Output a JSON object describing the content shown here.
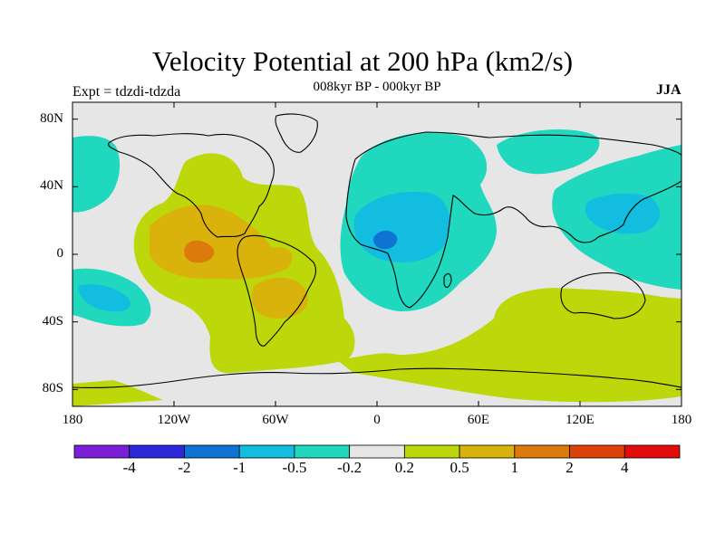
{
  "header": {
    "title": "Velocity Potential at 200 hPa (km2/s)",
    "subtitle": "008kyr BP - 000kyr BP",
    "left_label": "Expt = tdzdi-tdzda",
    "right_label": "JJA"
  },
  "map": {
    "projection": "cylindrical equidistant",
    "lon_range": [
      -180,
      180
    ],
    "lat_range": [
      -90,
      90
    ],
    "lat_ticks": [
      {
        "value": 80,
        "label": "80N"
      },
      {
        "value": 40,
        "label": "40N"
      },
      {
        "value": 0,
        "label": "0"
      },
      {
        "value": -40,
        "label": "40S"
      },
      {
        "value": -80,
        "label": "80S"
      }
    ],
    "lon_ticks": [
      {
        "value": -180,
        "label": "180"
      },
      {
        "value": -120,
        "label": "120W"
      },
      {
        "value": -60,
        "label": "60W"
      },
      {
        "value": 0,
        "label": "0"
      },
      {
        "value": 60,
        "label": "60E"
      },
      {
        "value": 120,
        "label": "120E"
      },
      {
        "value": 180,
        "label": "180"
      }
    ]
  },
  "colorbar": {
    "colors": [
      "#7a1ed8",
      "#2a28d8",
      "#0f73d4",
      "#12bde0",
      "#1fd8bd",
      "#e6e6e6",
      "#bcd80b",
      "#d9b20c",
      "#dc7a0b",
      "#dd420a",
      "#e20c0c"
    ],
    "labels": [
      "-4",
      "-2",
      "-1",
      "-0.5",
      "-0.2",
      "0.2",
      "0.5",
      "1",
      "2",
      "4"
    ]
  },
  "colors": {
    "neutral": "#e6e6e6",
    "pos_low": "#bcd80b",
    "pos_mid": "#d9b20c",
    "pos_high": "#dc7a0b",
    "neg_low": "#1fd8bd",
    "neg_mid": "#12bde0",
    "neg_high": "#0f73d4"
  }
}
